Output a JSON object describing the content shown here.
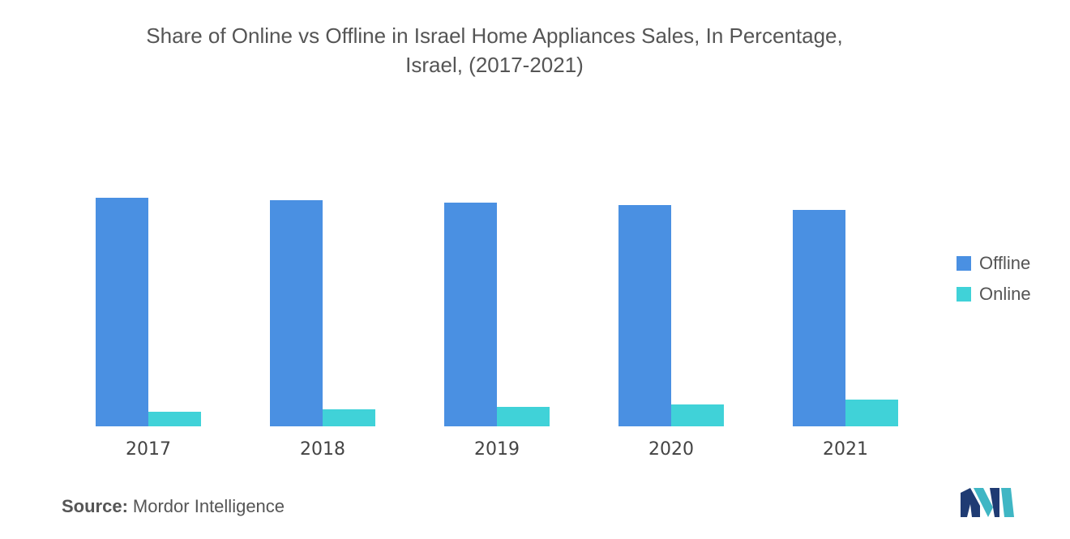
{
  "chart_data": {
    "type": "bar",
    "title": "Share of Online vs Offline in Israel Home Appliances Sales, In Percentage, Israel, (2017-2021)",
    "title_lines": [
      "Share of Online vs Offline in Israel Home Appliances Sales, In Percentage,",
      "Israel, (2017-2021)"
    ],
    "categories": [
      "2017",
      "2018",
      "2019",
      "2020",
      "2021"
    ],
    "series": [
      {
        "name": "Offline",
        "color": "#4a90e2",
        "values": [
          94,
          93,
          92,
          91,
          89
        ]
      },
      {
        "name": "Online",
        "color": "#40d2d8",
        "values": [
          6,
          7,
          8,
          9,
          11
        ]
      }
    ],
    "ylim": [
      0,
      100
    ],
    "grid": false,
    "legend": "right"
  },
  "source": {
    "label": "Source:",
    "text": "Mordor Intelligence"
  },
  "logo": {
    "icon": "mordor-intelligence-logo-icon"
  }
}
